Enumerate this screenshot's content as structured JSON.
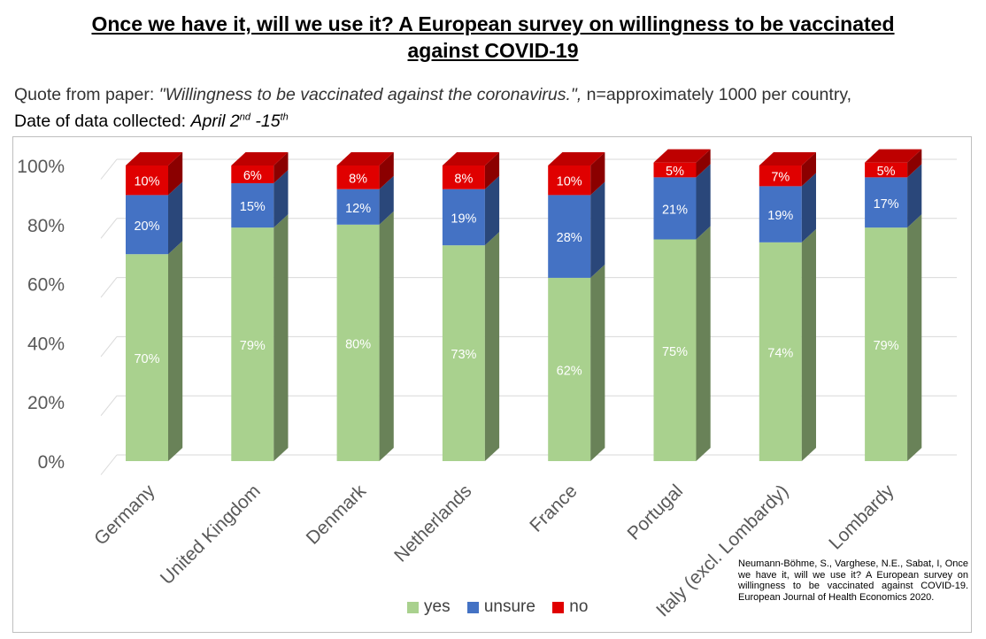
{
  "title": {
    "line1": "Once we have it, will we use it? A European survey on willingness to be vaccinated",
    "line2": "against COVID-19"
  },
  "subtitle": {
    "quote_prefix": "Quote from paper: ",
    "quote": "\"Willingness to be vaccinated against the coronavirus.\",",
    "quote_suffix": " n=approximately 1000 per country,",
    "date_prefix": "Date of data collected: ",
    "date_a": "April 2",
    "date_a_sup": "nd",
    "date_b": " -15",
    "date_b_sup": "th"
  },
  "citation": "Neumann-Böhme, S., Varghese, N.E., Sabat, I, Once we have it, will we use it? A European survey on willingness to be vaccinated against COVID-19. European Journal of Health Economics 2020.",
  "colors": {
    "yes": "#a9d18e",
    "unsure": "#4472c4",
    "no": "#e00000"
  },
  "chart_data": {
    "type": "bar",
    "stacked": true,
    "three_d": true,
    "categories": [
      "Germany",
      "United Kingdom",
      "Denmark",
      "Netherlands",
      "France",
      "Portugal",
      "Italy (excl. Lombardy)",
      "Lombardy"
    ],
    "series": [
      {
        "name": "yes",
        "values": [
          70,
          79,
          80,
          73,
          62,
          75,
          74,
          79
        ]
      },
      {
        "name": "unsure",
        "values": [
          20,
          15,
          12,
          19,
          28,
          21,
          19,
          17
        ]
      },
      {
        "name": "no",
        "values": [
          10,
          6,
          8,
          8,
          10,
          5,
          7,
          5
        ]
      }
    ],
    "y_ticks": [
      "0%",
      "20%",
      "40%",
      "60%",
      "80%",
      "100%"
    ],
    "ylim": [
      0,
      100
    ],
    "grid": true,
    "legend_position": "bottom"
  }
}
